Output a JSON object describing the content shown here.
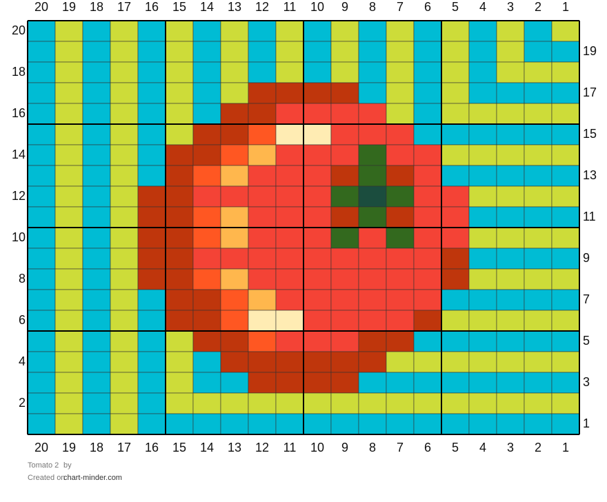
{
  "grid": {
    "title": "Tomato 2",
    "by": "by",
    "created": "Created on",
    "site": "chart-minder.com",
    "columns": [
      20,
      19,
      18,
      17,
      16,
      15,
      14,
      13,
      12,
      11,
      10,
      9,
      8,
      7,
      6,
      5,
      4,
      3,
      2,
      1
    ],
    "row_numbers": [
      20,
      19,
      18,
      17,
      16,
      15,
      14,
      13,
      12,
      11,
      10,
      9,
      8,
      7,
      6,
      5,
      4,
      3,
      2,
      1
    ],
    "palette": {
      "B": "#00bcd4",
      "Y": "#cddc39",
      "D": "#bf360c",
      "R": "#f44336",
      "O": "#ff5722",
      "L": "#ffb74d",
      "C": "#ffecb3",
      "G": "#33691e",
      "K": "#1b4d3e"
    },
    "rows": [
      [
        "B",
        "Y",
        "B",
        "Y",
        "B",
        "Y",
        "B",
        "Y",
        "B",
        "Y",
        "B",
        "Y",
        "B",
        "Y",
        "B",
        "Y",
        "B",
        "Y",
        "B",
        "Y"
      ],
      [
        "B",
        "Y",
        "B",
        "Y",
        "B",
        "Y",
        "B",
        "Y",
        "B",
        "Y",
        "B",
        "Y",
        "B",
        "Y",
        "B",
        "Y",
        "B",
        "Y",
        "B",
        "B"
      ],
      [
        "B",
        "Y",
        "B",
        "Y",
        "B",
        "Y",
        "B",
        "Y",
        "B",
        "Y",
        "B",
        "Y",
        "B",
        "Y",
        "B",
        "Y",
        "B",
        "Y",
        "Y",
        "Y"
      ],
      [
        "B",
        "Y",
        "B",
        "Y",
        "B",
        "Y",
        "B",
        "Y",
        "D",
        "D",
        "D",
        "D",
        "B",
        "Y",
        "B",
        "Y",
        "B",
        "B",
        "B",
        "B"
      ],
      [
        "B",
        "Y",
        "B",
        "Y",
        "B",
        "Y",
        "B",
        "D",
        "D",
        "R",
        "R",
        "R",
        "R",
        "Y",
        "B",
        "Y",
        "Y",
        "Y",
        "Y",
        "Y"
      ],
      [
        "B",
        "Y",
        "B",
        "Y",
        "B",
        "Y",
        "D",
        "D",
        "O",
        "C",
        "C",
        "R",
        "R",
        "R",
        "B",
        "B",
        "B",
        "B",
        "B",
        "B"
      ],
      [
        "B",
        "Y",
        "B",
        "Y",
        "B",
        "D",
        "D",
        "O",
        "L",
        "R",
        "R",
        "R",
        "G",
        "R",
        "R",
        "Y",
        "Y",
        "Y",
        "Y",
        "Y"
      ],
      [
        "B",
        "Y",
        "B",
        "Y",
        "B",
        "D",
        "O",
        "L",
        "R",
        "R",
        "R",
        "D",
        "G",
        "D",
        "R",
        "B",
        "B",
        "B",
        "B",
        "B"
      ],
      [
        "B",
        "Y",
        "B",
        "Y",
        "D",
        "D",
        "R",
        "R",
        "R",
        "R",
        "R",
        "G",
        "K",
        "G",
        "R",
        "R",
        "Y",
        "Y",
        "Y",
        "Y"
      ],
      [
        "B",
        "Y",
        "B",
        "Y",
        "D",
        "D",
        "O",
        "L",
        "R",
        "R",
        "R",
        "D",
        "G",
        "D",
        "R",
        "R",
        "B",
        "B",
        "B",
        "B"
      ],
      [
        "B",
        "Y",
        "B",
        "Y",
        "D",
        "D",
        "O",
        "L",
        "R",
        "R",
        "R",
        "G",
        "R",
        "G",
        "R",
        "R",
        "Y",
        "Y",
        "Y",
        "Y"
      ],
      [
        "B",
        "Y",
        "B",
        "Y",
        "D",
        "D",
        "R",
        "R",
        "R",
        "R",
        "R",
        "R",
        "R",
        "R",
        "R",
        "D",
        "B",
        "B",
        "B",
        "B"
      ],
      [
        "B",
        "Y",
        "B",
        "Y",
        "D",
        "D",
        "O",
        "L",
        "R",
        "R",
        "R",
        "R",
        "R",
        "R",
        "R",
        "D",
        "Y",
        "Y",
        "Y",
        "Y"
      ],
      [
        "B",
        "Y",
        "B",
        "Y",
        "B",
        "D",
        "D",
        "O",
        "L",
        "R",
        "R",
        "R",
        "R",
        "R",
        "R",
        "B",
        "B",
        "B",
        "B",
        "B"
      ],
      [
        "B",
        "Y",
        "B",
        "Y",
        "B",
        "D",
        "D",
        "O",
        "C",
        "C",
        "R",
        "R",
        "R",
        "R",
        "D",
        "Y",
        "Y",
        "Y",
        "Y",
        "Y"
      ],
      [
        "B",
        "Y",
        "B",
        "Y",
        "B",
        "Y",
        "D",
        "D",
        "O",
        "R",
        "R",
        "R",
        "D",
        "D",
        "B",
        "B",
        "B",
        "B",
        "B",
        "B"
      ],
      [
        "B",
        "Y",
        "B",
        "Y",
        "B",
        "Y",
        "B",
        "D",
        "D",
        "D",
        "D",
        "D",
        "D",
        "Y",
        "Y",
        "Y",
        "Y",
        "Y",
        "Y",
        "Y"
      ],
      [
        "B",
        "Y",
        "B",
        "Y",
        "B",
        "Y",
        "B",
        "B",
        "D",
        "D",
        "D",
        "D",
        "B",
        "B",
        "B",
        "B",
        "B",
        "B",
        "B",
        "B"
      ],
      [
        "B",
        "Y",
        "B",
        "Y",
        "B",
        "Y",
        "Y",
        "Y",
        "Y",
        "Y",
        "Y",
        "Y",
        "Y",
        "Y",
        "Y",
        "Y",
        "Y",
        "Y",
        "Y",
        "Y"
      ],
      [
        "B",
        "Y",
        "B",
        "Y",
        "B",
        "B",
        "B",
        "B",
        "B",
        "B",
        "B",
        "B",
        "B",
        "B",
        "B",
        "B",
        "B",
        "B",
        "B",
        "B"
      ]
    ]
  }
}
